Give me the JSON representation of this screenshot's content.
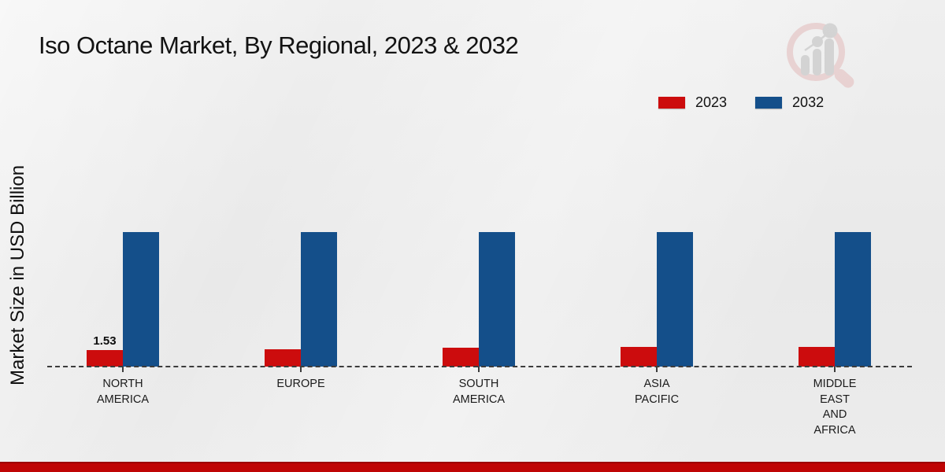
{
  "header": {
    "title": "Iso Octane Market, By Regional, 2023 & 2032"
  },
  "logo": {
    "icon": "market-research-future-logo-icon",
    "circle_color": "#e7cdcd",
    "bars_color": "#cfcfcf"
  },
  "y_axis": {
    "label": "Market Size in USD Billion"
  },
  "colors": {
    "series_2023": "#cc0c0d",
    "series_2032": "#144f8a",
    "baseline": "#3c3c3c",
    "footer_red": "#bf0505",
    "background": "#ececec"
  },
  "chart_data": {
    "type": "bar",
    "title": "Iso Octane Market, By Regional, 2023 & 2032",
    "xlabel": "",
    "ylabel": "Market Size in USD Billion",
    "categories": [
      "NORTH AMERICA",
      "EUROPE",
      "SOUTH AMERICA",
      "ASIA PACIFIC",
      "MIDDLE EAST AND AFRICA"
    ],
    "category_lines": [
      [
        "NORTH",
        "AMERICA"
      ],
      [
        "EUROPE"
      ],
      [
        "SOUTH",
        "AMERICA"
      ],
      [
        "ASIA",
        "PACIFIC"
      ],
      [
        "MIDDLE",
        "EAST",
        "AND",
        "AFRICA"
      ]
    ],
    "series": [
      {
        "name": "2023",
        "color": "#cc0c0d",
        "values": [
          1.53,
          1.6,
          1.68,
          1.75,
          1.82
        ],
        "point_labels": [
          "1.53",
          "",
          "",
          "",
          ""
        ]
      },
      {
        "name": "2032",
        "color": "#144f8a",
        "values": [
          12.2,
          12.2,
          12.2,
          12.2,
          12.2
        ],
        "point_labels": [
          "",
          "",
          "",
          "",
          ""
        ]
      }
    ],
    "ylim": [
      0,
      14
    ],
    "grid": false,
    "axis_style": "dashed-baseline-only",
    "legend_position": "top-right",
    "data_label_note": "Only the 2023 North America bar is labeled (1.53); other values estimated from bar heights"
  }
}
